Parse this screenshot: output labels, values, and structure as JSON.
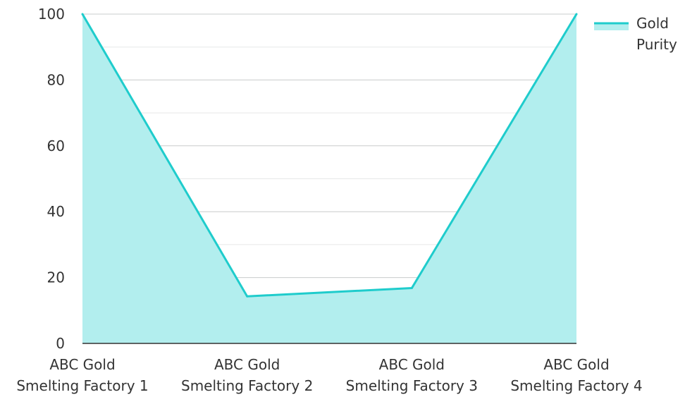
{
  "chart_data": {
    "type": "area",
    "categories": [
      [
        "ABC Gold",
        "Smelting Factory 1"
      ],
      [
        "ABC Gold",
        "Smelting Factory 2"
      ],
      [
        "ABC Gold",
        "Smelting Factory 3"
      ],
      [
        "ABC Gold",
        "Smelting Factory 4"
      ]
    ],
    "series": [
      {
        "name": "Gold Purity",
        "values": [
          100,
          14.3,
          16.8,
          100
        ],
        "color": "#1fcccc",
        "fill": "#b2eeee"
      }
    ],
    "ylim": [
      0,
      100
    ],
    "yticks": [
      0,
      20,
      40,
      60,
      80,
      100
    ],
    "minor_grid": [
      10,
      30,
      50,
      70,
      90
    ],
    "grid": true,
    "legend": {
      "position": "top-right",
      "lines": [
        "Gold",
        "Purity"
      ]
    },
    "colors": {
      "major_grid": "#c8cccc",
      "minor_grid": "#e6e8e8",
      "axis": "#333333",
      "text": "#333333"
    }
  }
}
